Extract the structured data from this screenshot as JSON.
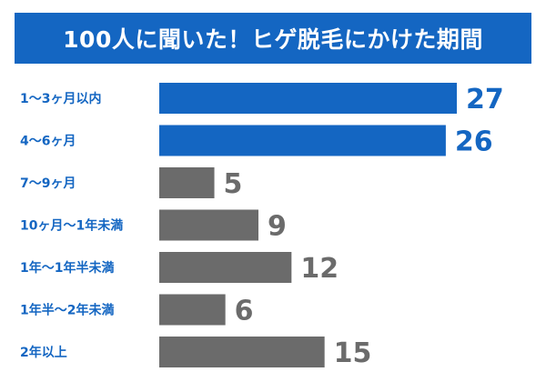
{
  "chart_data": {
    "type": "bar",
    "orientation": "horizontal",
    "title": "100人に聞いた！ヒゲ脱毛にかけた期間",
    "categories": [
      "1〜3ヶ月以内",
      "4〜6ヶ月",
      "7〜9ヶ月",
      "10ヶ月〜1年未満",
      "1年〜1年半未満",
      "1年半〜2年未満",
      "2年以上"
    ],
    "values": [
      27,
      26,
      5,
      9,
      12,
      6,
      15
    ],
    "highlight_count": 2,
    "colors": {
      "highlight": "#1466c2",
      "normal": "#6b6b6b",
      "category_text": "#1466c2",
      "title_bg": "#1466c2"
    },
    "xlim": [
      0,
      27
    ],
    "grid": false,
    "legend": "none"
  }
}
